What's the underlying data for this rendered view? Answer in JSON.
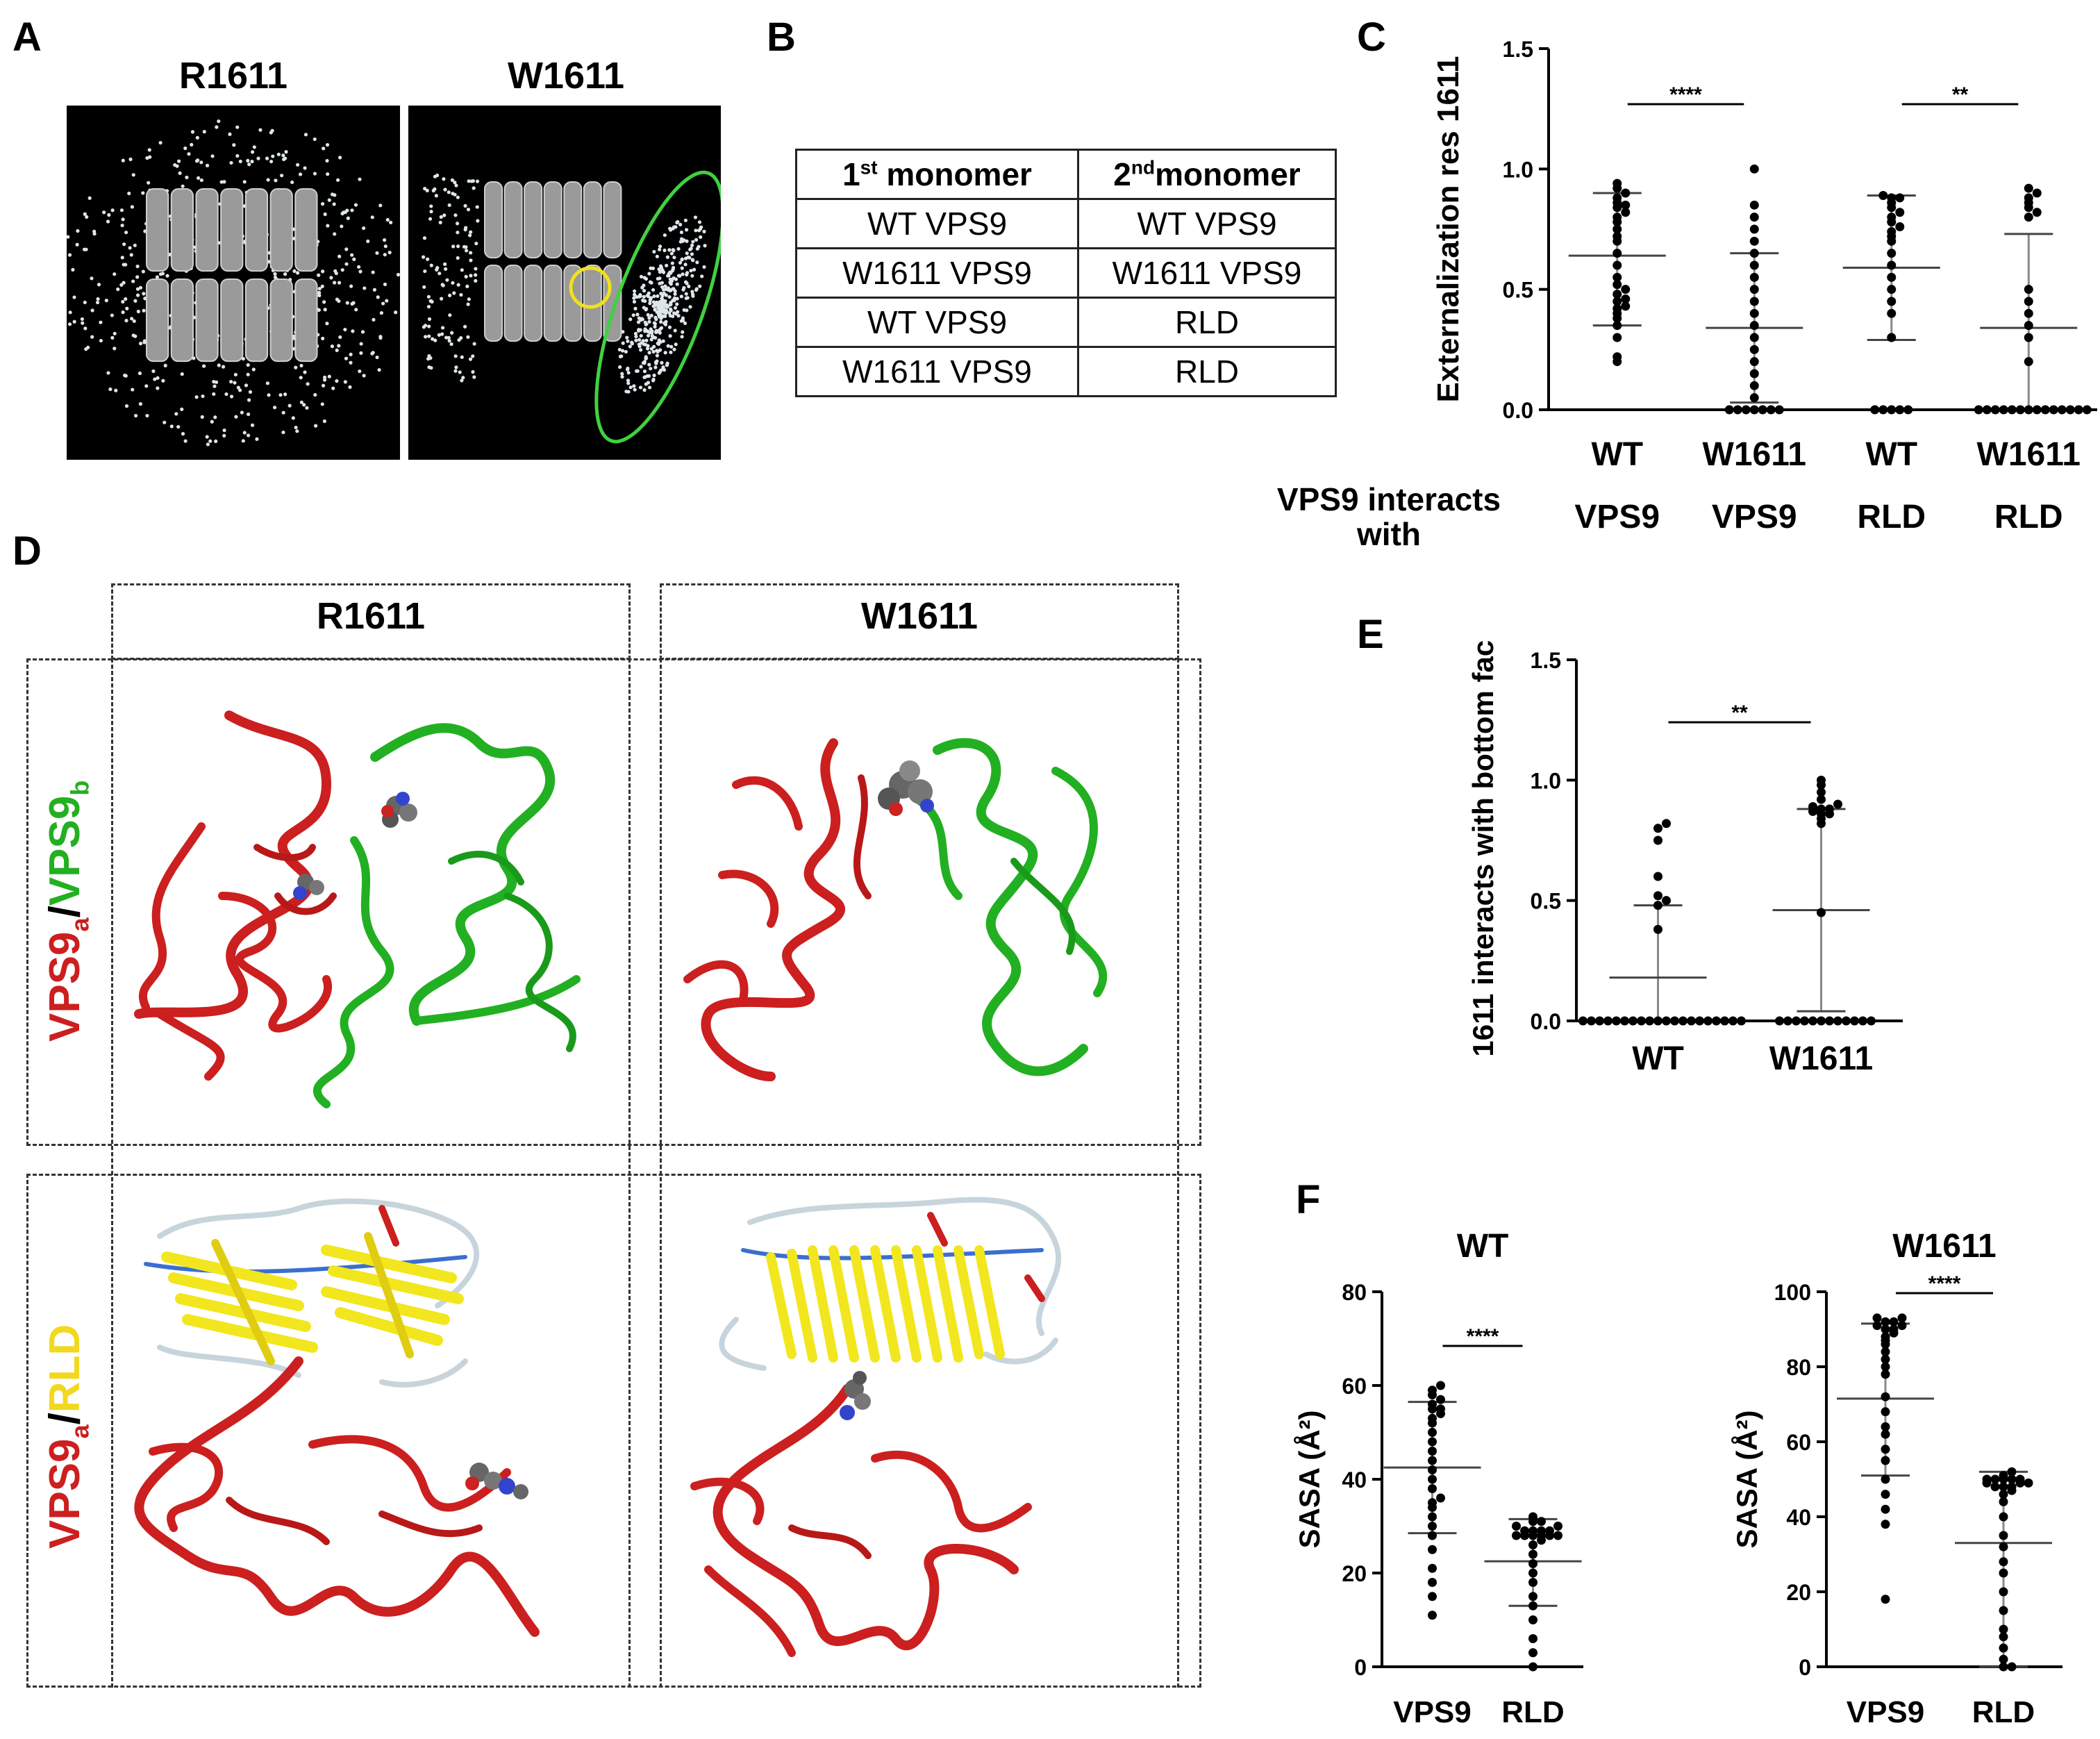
{
  "panel_labels": {
    "a": "A",
    "b": "B",
    "c": "C",
    "d": "D",
    "e": "E",
    "f": "F"
  },
  "panel_a": {
    "left_title": "R1611",
    "right_title": "W1611"
  },
  "panel_b": {
    "header": [
      "1st monomer",
      "2ndmonomer"
    ],
    "rows": [
      [
        "WT VPS9",
        "WT VPS9"
      ],
      [
        "W1611 VPS9",
        "W1611 VPS9"
      ],
      [
        "WT VPS9",
        "RLD"
      ],
      [
        "W1611 VPS9",
        "RLD"
      ]
    ]
  },
  "panel_d": {
    "col_left": "R1611",
    "col_right": "W1611",
    "row1_label_a": "VPS9",
    "row1_sub_a": "a",
    "row1_sep": "/",
    "row1_label_b": "VPS9",
    "row1_sub_b": "b",
    "row2_label_a": "VPS9",
    "row2_sub_a": "a",
    "row2_sep": "/",
    "row2_label_b": "RLD",
    "colors": {
      "vps9a": "#cc1f1f",
      "vps9b": "#22b022",
      "rld": "#f2e61e"
    }
  },
  "chart_data": [
    {
      "id": "C",
      "type": "scatter",
      "ylabel": "Externalization res 1611",
      "ylim": [
        0,
        1.5
      ],
      "yticks": [
        "0.0",
        "0.5",
        "1.0",
        "1.5"
      ],
      "categories_top": [
        "WT",
        "W1611",
        "WT",
        "W1611"
      ],
      "categories_bottom": [
        "VPS9",
        "VPS9",
        "RLD",
        "RLD"
      ],
      "group_caption": "VPS9 interacts with",
      "mean": [
        0.64,
        0.34,
        0.59,
        0.34
      ],
      "sd_low": [
        0.35,
        0.03,
        0.29,
        0.0
      ],
      "sd_high": [
        0.9,
        0.65,
        0.89,
        0.73
      ],
      "points": [
        [
          0.2,
          0.22,
          0.3,
          0.35,
          0.38,
          0.4,
          0.42,
          0.43,
          0.45,
          0.46,
          0.48,
          0.5,
          0.52,
          0.55,
          0.6,
          0.65,
          0.7,
          0.72,
          0.75,
          0.78,
          0.8,
          0.82,
          0.84,
          0.85,
          0.86,
          0.88,
          0.9,
          0.92,
          0.94
        ],
        [
          0,
          0,
          0,
          0,
          0,
          0,
          0,
          0.05,
          0.1,
          0.15,
          0.2,
          0.25,
          0.3,
          0.35,
          0.4,
          0.45,
          0.5,
          0.55,
          0.6,
          0.65,
          0.7,
          0.75,
          0.8,
          0.85,
          1.0
        ],
        [
          0,
          0,
          0,
          0,
          0,
          0.3,
          0.4,
          0.45,
          0.5,
          0.55,
          0.6,
          0.65,
          0.7,
          0.72,
          0.74,
          0.76,
          0.78,
          0.8,
          0.82,
          0.84,
          0.86,
          0.88,
          0.88,
          0.89
        ],
        [
          0,
          0,
          0,
          0,
          0,
          0,
          0,
          0,
          0,
          0,
          0,
          0,
          0,
          0,
          0.2,
          0.3,
          0.35,
          0.4,
          0.45,
          0.5,
          0.8,
          0.82,
          0.84,
          0.86,
          0.88,
          0.9,
          0.92
        ]
      ],
      "significance": [
        {
          "from": 0,
          "to": 1,
          "label": "****"
        },
        {
          "from": 2,
          "to": 3,
          "label": "**"
        }
      ]
    },
    {
      "id": "E",
      "type": "scatter",
      "ylabel": "1611 interacts with bottom face",
      "ylim": [
        0,
        1.5
      ],
      "yticks": [
        "0.0",
        "0.5",
        "1.0",
        "1.5"
      ],
      "categories": [
        "WT",
        "W1611"
      ],
      "mean": [
        0.18,
        0.46
      ],
      "sd_low": [
        0.0,
        0.04
      ],
      "sd_high": [
        0.48,
        0.88
      ],
      "points": [
        [
          0,
          0,
          0,
          0,
          0,
          0,
          0,
          0,
          0,
          0,
          0,
          0,
          0,
          0,
          0,
          0,
          0,
          0,
          0,
          0,
          0.38,
          0.48,
          0.5,
          0.52,
          0.6,
          0.75,
          0.8,
          0.82
        ],
        [
          0,
          0,
          0,
          0,
          0,
          0,
          0,
          0,
          0,
          0,
          0,
          0,
          0.45,
          0.82,
          0.84,
          0.86,
          0.86,
          0.87,
          0.88,
          0.88,
          0.89,
          0.9,
          0.92,
          0.95,
          0.98,
          1.0
        ]
      ],
      "significance": [
        {
          "from": 0,
          "to": 1,
          "label": "**"
        }
      ]
    },
    {
      "id": "F1",
      "type": "scatter",
      "title": "WT",
      "ylabel": "SASA (Å²)",
      "ylim": [
        0,
        80
      ],
      "yticks": [
        "0",
        "20",
        "40",
        "60",
        "80"
      ],
      "categories": [
        "VPS9",
        "RLD"
      ],
      "mean": [
        42.5,
        22.5
      ],
      "sd_low": [
        28.5,
        13
      ],
      "sd_high": [
        56.5,
        31.5
      ],
      "points": [
        [
          11,
          15,
          18,
          21,
          25,
          28,
          30,
          32,
          34,
          35,
          36,
          38,
          40,
          42,
          44,
          46,
          48,
          50,
          52,
          53,
          54,
          55,
          55,
          56,
          57,
          58,
          59,
          60
        ],
        [
          0,
          3,
          6,
          10,
          13,
          15,
          18,
          20,
          22,
          24,
          26,
          27,
          28,
          28,
          28,
          28,
          28,
          28,
          29,
          29,
          29,
          29,
          30,
          30,
          31,
          31,
          32
        ]
      ],
      "significance": [
        {
          "from": 0,
          "to": 1,
          "label": "****"
        }
      ]
    },
    {
      "id": "F2",
      "type": "scatter",
      "title": "W1611",
      "ylabel": "SASA (Å²)",
      "ylim": [
        0,
        100
      ],
      "yticks": [
        "0",
        "20",
        "40",
        "60",
        "80",
        "100"
      ],
      "categories": [
        "VPS9",
        "RLD"
      ],
      "mean": [
        71.5,
        33
      ],
      "sd_low": [
        51,
        0
      ],
      "sd_high": [
        91.5,
        52
      ],
      "points": [
        [
          18,
          38,
          42,
          46,
          50,
          55,
          58,
          62,
          64,
          68,
          72,
          78,
          80,
          82,
          84,
          86,
          87,
          88,
          89,
          90,
          90,
          91,
          91,
          92,
          92,
          93,
          93
        ],
        [
          0,
          0,
          2,
          5,
          8,
          10,
          15,
          20,
          25,
          28,
          32,
          35,
          40,
          44,
          46,
          47,
          48,
          48,
          48,
          49,
          49,
          49,
          50,
          50,
          50,
          50,
          50,
          51,
          52
        ]
      ],
      "significance": [
        {
          "from": 0,
          "to": 1,
          "label": "****"
        }
      ]
    }
  ]
}
